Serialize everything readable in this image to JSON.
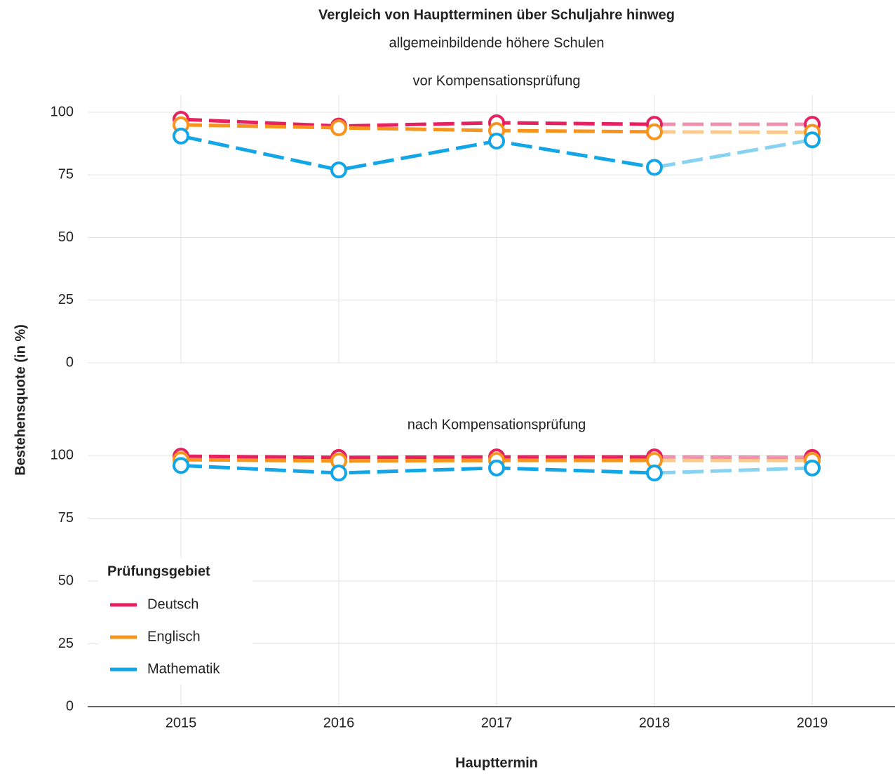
{
  "chart_data": [
    {
      "type": "line",
      "title": "Vergleich von Hauptterminen über Schuljahre hinweg",
      "subtitle": "allgemeinbildende höhere Schulen",
      "y_label": "Bestehensquote (in %)",
      "x_label": "Haupttermin",
      "legend_title": "Prüfungsgebiet",
      "panel_title": "vor Kompensationsprüfung",
      "categories": [
        "2015",
        "2016",
        "2017",
        "2018",
        "2019"
      ],
      "series": [
        {
          "name": "Deutsch",
          "color": "#e5225f",
          "values": [
            97.2,
            94.5,
            95.8,
            95.2,
            95.2
          ]
        },
        {
          "name": "Englisch",
          "color": "#f7941d",
          "values": [
            95,
            93.8,
            92.7,
            92.2,
            92
          ]
        },
        {
          "name": "Mathematik",
          "color": "#12a6e6",
          "values": [
            90.5,
            77,
            88.5,
            78,
            89
          ]
        }
      ],
      "ylim": [
        0,
        100
      ],
      "yticks": [
        0,
        25,
        50,
        75,
        100
      ],
      "grid": true,
      "dashed": true,
      "faded_last_segment": true
    },
    {
      "type": "line",
      "panel_title": "nach Kompensationsprüfung",
      "categories": [
        "2015",
        "2016",
        "2017",
        "2018",
        "2019"
      ],
      "series": [
        {
          "name": "Deutsch",
          "color": "#e5225f",
          "values": [
            99.7,
            99.2,
            99.4,
            99.4,
            99.2
          ]
        },
        {
          "name": "Englisch",
          "color": "#f7941d",
          "values": [
            98.3,
            97.8,
            98,
            98,
            98
          ]
        },
        {
          "name": "Mathematik",
          "color": "#12a6e6",
          "values": [
            96,
            93,
            95,
            93,
            95
          ]
        }
      ],
      "ylim": [
        0,
        100
      ],
      "yticks": [
        0,
        25,
        50,
        75,
        100
      ],
      "grid": true,
      "dashed": true,
      "faded_last_segment": true,
      "legend": "lower left"
    }
  ]
}
